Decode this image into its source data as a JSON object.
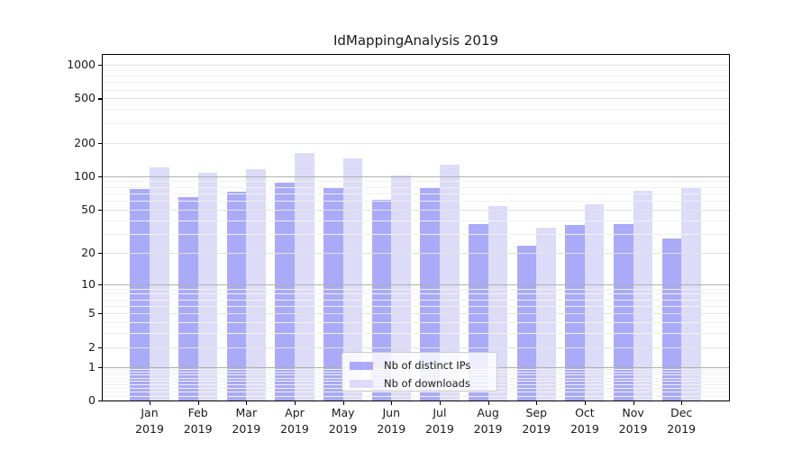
{
  "title": "IdMappingAnalysis 2019",
  "year": "2019",
  "colors": {
    "ips": "#aaaaf8",
    "downloads": "#dcdcf8",
    "grid_decade": "#b0b0b0",
    "grid_tick": "#e3e3e3",
    "grid_minor": "#f1f1f1",
    "axis": "#000000",
    "text": "#1a1a1a",
    "legend_border": "#cccccc"
  },
  "legend": {
    "items": [
      {
        "label": "Nb of distinct IPs",
        "color_key": "ips"
      },
      {
        "label": "Nb of downloads",
        "color_key": "downloads"
      }
    ]
  },
  "y_axis": {
    "ticks": [
      0,
      1,
      2,
      5,
      10,
      20,
      50,
      100,
      200,
      500,
      1000
    ],
    "decade_ticks": [
      1,
      10,
      100
    ]
  },
  "chart_data": {
    "type": "bar",
    "title": "IdMappingAnalysis 2019",
    "categories": [
      "Jan 2019",
      "Feb 2019",
      "Mar 2019",
      "Apr 2019",
      "May 2019",
      "Jun 2019",
      "Jul 2019",
      "Aug 2019",
      "Sep 2019",
      "Oct 2019",
      "Nov 2019",
      "Dec 2019"
    ],
    "months": [
      "Jan",
      "Feb",
      "Mar",
      "Apr",
      "May",
      "Jun",
      "Jul",
      "Aug",
      "Sep",
      "Oct",
      "Nov",
      "Dec"
    ],
    "series": [
      {
        "name": "Nb of distinct IPs",
        "values": [
          77,
          65,
          72,
          87,
          79,
          61,
          78,
          37,
          23,
          36,
          37,
          27
        ]
      },
      {
        "name": "Nb of downloads",
        "values": [
          121,
          108,
          115,
          162,
          145,
          101,
          127,
          54,
          34,
          56,
          74,
          80
        ]
      }
    ],
    "yscale": "log10(value+1)",
    "yticks": [
      0,
      1,
      2,
      5,
      10,
      20,
      50,
      100,
      200,
      500,
      1000
    ],
    "ylim": [
      0,
      1200
    ],
    "grid": "both",
    "grid_above_bars": true,
    "legend_position": "lower center"
  }
}
